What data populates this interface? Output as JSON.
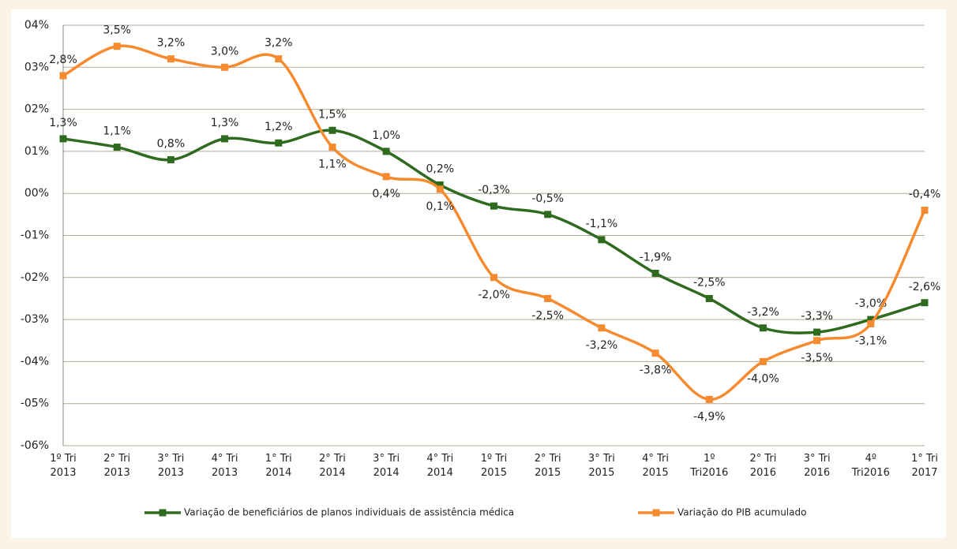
{
  "chart_data": {
    "type": "line",
    "categories": [
      "1º Tri\n2013",
      "2° Tri\n2013",
      "3° Tri\n2013",
      "4° Tri\n2013",
      "1° Tri\n2014",
      "2° Tri\n2014",
      "3° Tri\n2014",
      "4° Tri\n2014",
      "1º Tri\n2015",
      "2° Tri\n2015",
      "3° Tri\n2015",
      "4° Tri\n2015",
      "1º\nTri2016",
      "2° Tri\n2016",
      "3° Tri\n2016",
      "4º\nTri2016",
      "1° Tri\n2017"
    ],
    "series": [
      {
        "name": "Variação de beneficiários de planos individuais de assistência médica",
        "color": "#2e6b1f",
        "values": [
          1.3,
          1.1,
          0.8,
          1.3,
          1.2,
          1.5,
          1.0,
          0.2,
          -0.3,
          -0.5,
          -1.1,
          -1.9,
          -2.5,
          -3.2,
          -3.3,
          -3.0,
          -2.6
        ],
        "value_labels": [
          "1,3%",
          "1,1%",
          "0,8%",
          "1,3%",
          "1,2%",
          "1,5%",
          "1,0%",
          "0,2%",
          "-0,3%",
          "-0,5%",
          "-1,1%",
          "-1,9%",
          "-2,5%",
          "-3,2%",
          "-3,3%",
          "-3,0%",
          "-2,6%"
        ]
      },
      {
        "name": "Variação do PIB acumulado",
        "color": "#f58a2e",
        "values": [
          2.8,
          3.5,
          3.2,
          3.0,
          3.2,
          1.1,
          0.4,
          0.1,
          -2.0,
          -2.5,
          -3.2,
          -3.8,
          -4.9,
          -4.0,
          -3.5,
          -3.1,
          -0.4
        ],
        "value_labels": [
          "2,8%",
          "3,5%",
          "3,2%",
          "3,0%",
          "3,2%",
          "1,1%",
          "0,4%",
          "0,1%",
          "-2,0%",
          "-2,5%",
          "-3,2%",
          "-3,8%",
          "-4,9%",
          "-4,0%",
          "-3,5%",
          "-3,1%",
          "-0,4%"
        ]
      }
    ],
    "ylim": [
      -6,
      4
    ],
    "yticks": [
      {
        "value": -6,
        "label": "-06%"
      },
      {
        "value": -5,
        "label": "-05%"
      },
      {
        "value": -4,
        "label": "-04%"
      },
      {
        "value": -3,
        "label": "-03%"
      },
      {
        "value": -2,
        "label": "-02%"
      },
      {
        "value": -1,
        "label": "-01%"
      },
      {
        "value": 0,
        "label": "00%"
      },
      {
        "value": 1,
        "label": "01%"
      },
      {
        "value": 2,
        "label": "02%"
      },
      {
        "value": 3,
        "label": "03%"
      },
      {
        "value": 4,
        "label": "04%"
      }
    ],
    "grid": true,
    "legend": "bottom"
  }
}
